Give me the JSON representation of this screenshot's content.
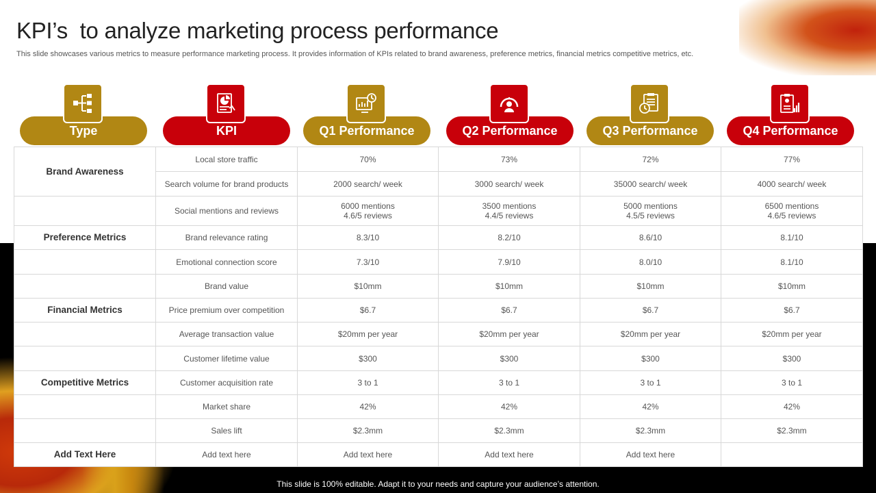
{
  "title": "KPI’s  to analyze marketing process performance",
  "subtitle": "This slide showcases various metrics to measure performance marketing process. It provides information of KPIs related to brand awareness, preference metrics, financial metrics competitive metrics, etc.",
  "headers": [
    {
      "label": "Type",
      "icon": "hierarchy-icon",
      "color": "#b18714"
    },
    {
      "label": "KPI",
      "icon": "pie-report-icon",
      "color": "#c8000a"
    },
    {
      "label": "Q1 Performance",
      "icon": "dashboard-icon",
      "color": "#b18714"
    },
    {
      "label": "Q2 Performance",
      "icon": "speedometer-user-icon",
      "color": "#c8000a"
    },
    {
      "label": "Q3 Performance",
      "icon": "clipboard-clock-icon",
      "color": "#b18714"
    },
    {
      "label": "Q4 Performance",
      "icon": "report-chart-icon",
      "color": "#c8000a"
    }
  ],
  "types": [
    "Brand Awareness",
    "Preference  Metrics",
    "Financial Metrics",
    "Competitive Metrics",
    "Add Text Here"
  ],
  "rows": [
    {
      "kpi": "Local store traffic",
      "q1": "70%",
      "q2": "73%",
      "q3": "72%",
      "q4": "77%"
    },
    {
      "kpi": "Search volume for brand products",
      "q1": "2000 search/ week",
      "q2": "3000 search/ week",
      "q3": "35000 search/ week",
      "q4": "4000 search/ week"
    },
    {
      "kpi": "Social mentions and reviews",
      "q1": "6000 mentions\n4.6/5 reviews",
      "q2": "3500 mentions\n4.4/5 reviews",
      "q3": "5000 mentions\n4.5/5 reviews",
      "q4": "6500 mentions\n4.6/5 reviews"
    },
    {
      "kpi": "Brand relevance rating",
      "q1": "8.3/10",
      "q2": "8.2/10",
      "q3": "8.6/10",
      "q4": "8.1/10"
    },
    {
      "kpi": "Emotional connection score",
      "q1": "7.3/10",
      "q2": "7.9/10",
      "q3": "8.0/10",
      "q4": "8.1/10"
    },
    {
      "kpi": "Brand value",
      "q1": "$10mm",
      "q2": "$10mm",
      "q3": "$10mm",
      "q4": "$10mm"
    },
    {
      "kpi": "Price premium over competition",
      "q1": "$6.7",
      "q2": "$6.7",
      "q3": "$6.7",
      "q4": "$6.7"
    },
    {
      "kpi": "Average transaction value",
      "q1": "$20mm per year",
      "q2": "$20mm per year",
      "q3": "$20mm per year",
      "q4": "$20mm per year"
    },
    {
      "kpi": "Customer lifetime value",
      "q1": "$300",
      "q2": "$300",
      "q3": "$300",
      "q4": "$300"
    },
    {
      "kpi": "Customer acquisition rate",
      "q1": "3 to 1",
      "q2": "3 to 1",
      "q3": "3 to 1",
      "q4": "3 to 1"
    },
    {
      "kpi": "Market share",
      "q1": "42%",
      "q2": "42%",
      "q3": "42%",
      "q4": "42%"
    },
    {
      "kpi": "Sales lift",
      "q1": "$2.3mm",
      "q2": "$2.3mm",
      "q3": "$2.3mm",
      "q4": "$2.3mm"
    },
    {
      "kpi": "Add text here",
      "q1": "Add text here",
      "q2": "Add text here",
      "q3": "Add text here",
      "q4": ""
    }
  ],
  "footer": "This slide is 100% editable. Adapt it to your needs and capture your audience’s attention.",
  "colors": {
    "gold": "#b18714",
    "red": "#c8000a"
  }
}
